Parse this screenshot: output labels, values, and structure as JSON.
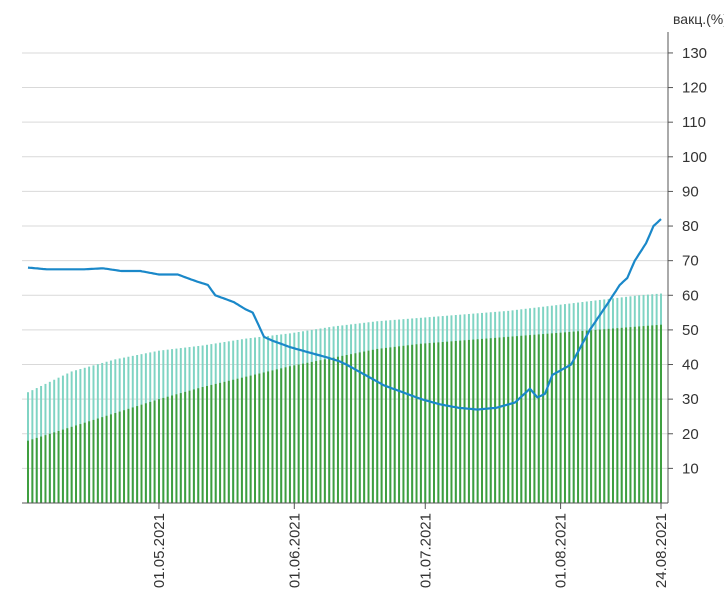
{
  "chart_data": {
    "type": "bar+line",
    "title": "",
    "ylabel": "вакц.(%)",
    "ylim": [
      0,
      135
    ],
    "y_ticks": [
      10,
      20,
      30,
      40,
      50,
      60,
      70,
      80,
      90,
      100,
      110,
      120,
      130
    ],
    "x_range": [
      "2021-04-01",
      "2021-08-24"
    ],
    "x_tick_labels": [
      "01.05.2021",
      "01.06.2021",
      "01.07.2021",
      "01.08.2021",
      "24.08.2021"
    ],
    "grid": true,
    "colors": {
      "bars_back": "#7fd4c3",
      "bars_front": "#3e9e3e",
      "line": "#1a88c9",
      "grid": "#d9d9d9",
      "axis": "#555555"
    },
    "series": [
      {
        "name": "bars_back",
        "type": "bar",
        "color": "#7fd4c3",
        "keypoints": [
          [
            0,
            32
          ],
          [
            10,
            38
          ],
          [
            20,
            41.5
          ],
          [
            30,
            44
          ],
          [
            40,
            45.5
          ],
          [
            50,
            47.5
          ],
          [
            60,
            49
          ],
          [
            70,
            51
          ],
          [
            80,
            52.5
          ],
          [
            90,
            53.5
          ],
          [
            100,
            54.5
          ],
          [
            110,
            55.5
          ],
          [
            120,
            57
          ],
          [
            130,
            58.5
          ],
          [
            140,
            60
          ],
          [
            145,
            60.5
          ]
        ]
      },
      {
        "name": "bars_front",
        "type": "bar",
        "color": "#3e9e3e",
        "keypoints": [
          [
            0,
            18
          ],
          [
            10,
            22
          ],
          [
            20,
            26
          ],
          [
            30,
            30
          ],
          [
            40,
            33.5
          ],
          [
            50,
            36.5
          ],
          [
            60,
            39.5
          ],
          [
            70,
            42
          ],
          [
            80,
            44.5
          ],
          [
            90,
            46
          ],
          [
            100,
            47
          ],
          [
            110,
            48
          ],
          [
            120,
            49
          ],
          [
            130,
            50
          ],
          [
            140,
            51
          ],
          [
            145,
            51.5
          ]
        ]
      },
      {
        "name": "line",
        "type": "line",
        "color": "#1a88c9",
        "keypoints": [
          [
            0,
            68
          ],
          [
            5,
            67.5
          ],
          [
            10,
            67.5
          ],
          [
            15,
            67.5
          ],
          [
            20,
            67.8
          ],
          [
            25,
            67
          ],
          [
            30,
            67
          ],
          [
            35,
            66
          ],
          [
            40,
            66
          ],
          [
            45,
            64
          ],
          [
            48,
            63
          ],
          [
            50,
            60
          ],
          [
            55,
            58
          ],
          [
            58,
            56
          ],
          [
            60,
            55
          ],
          [
            63,
            48
          ],
          [
            65,
            47
          ],
          [
            70,
            45
          ],
          [
            75,
            43.5
          ],
          [
            80,
            42
          ],
          [
            83,
            41
          ],
          [
            85,
            40
          ],
          [
            90,
            37
          ],
          [
            95,
            34
          ],
          [
            100,
            32
          ],
          [
            105,
            30
          ],
          [
            110,
            28.5
          ],
          [
            115,
            27.5
          ],
          [
            120,
            27
          ],
          [
            125,
            27.5
          ],
          [
            130,
            29
          ],
          [
            132,
            31
          ],
          [
            134,
            33
          ],
          [
            136,
            30.5
          ],
          [
            138,
            31.5
          ],
          [
            140,
            37
          ],
          [
            145,
            40
          ],
          [
            150,
            50
          ],
          [
            155,
            58
          ],
          [
            158,
            63
          ],
          [
            160,
            65
          ],
          [
            162,
            70
          ],
          [
            165,
            75
          ],
          [
            167,
            80
          ],
          [
            169,
            82
          ]
        ]
      }
    ]
  }
}
